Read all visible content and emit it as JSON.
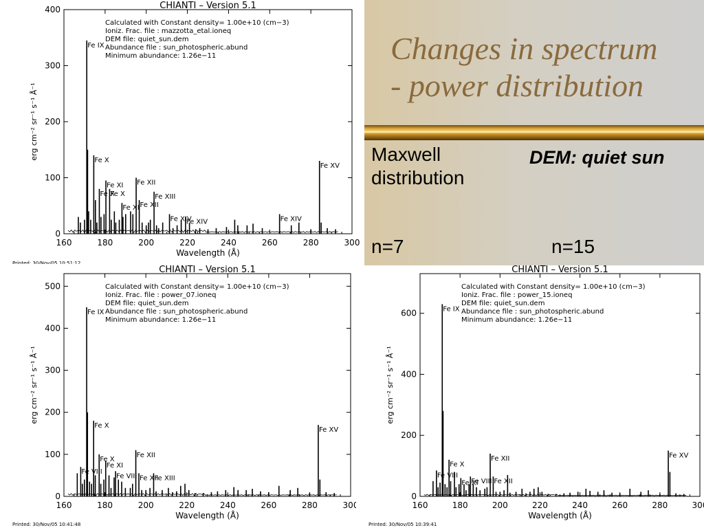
{
  "slide": {
    "title_line1": "Changes in spectrum",
    "title_line2": "- power distribution",
    "maxwell_line1": "Maxwell",
    "maxwell_line2": "distribution",
    "dem_label": "DEM: quiet sun",
    "n7_label": "n=7",
    "n15_label": "n=15"
  },
  "colors": {
    "title": "#8a6a3d",
    "rule_gold": "#d9a23a",
    "panel_bg": "#d4cfc2"
  },
  "chart_data": [
    {
      "type": "line",
      "title": "CHIANTI  –  Version 5.1",
      "xlabel": "Wavelength (Å)",
      "ylabel": "erg cm⁻² sr⁻¹ s⁻¹ Å⁻¹",
      "xlim": [
        160,
        300
      ],
      "ylim": [
        0,
        400
      ],
      "xticks": [
        160,
        180,
        200,
        220,
        240,
        260,
        280,
        300
      ],
      "yticks": [
        0,
        100,
        200,
        300,
        400
      ],
      "printed": "Printed: 30/Nov/05 10:51:12",
      "info": [
        "Calculated with Constant density=   1.00e+10 (cm−3)",
        "Ioniz. Frac. file : mazzotta_etal.ioneq",
        "DEM file: quiet_sun.dem",
        "Abundance file : sun_photospheric.abund",
        "Minimum abundance: 1.26e−11"
      ],
      "lines": [
        {
          "x": 167,
          "y": 30
        },
        {
          "x": 168,
          "y": 20
        },
        {
          "x": 170,
          "y": 25
        },
        {
          "x": 171.1,
          "y": 345,
          "label": "Fe IX"
        },
        {
          "x": 171.5,
          "y": 150
        },
        {
          "x": 172,
          "y": 40
        },
        {
          "x": 173,
          "y": 25
        },
        {
          "x": 174.5,
          "y": 140,
          "label": "Fe X"
        },
        {
          "x": 175.3,
          "y": 60
        },
        {
          "x": 176,
          "y": 20
        },
        {
          "x": 177.2,
          "y": 80,
          "label": "Fe X"
        },
        {
          "x": 178,
          "y": 30
        },
        {
          "x": 179.5,
          "y": 35
        },
        {
          "x": 180.4,
          "y": 95,
          "label": "Fe XI"
        },
        {
          "x": 182.2,
          "y": 80,
          "label": "Fe X"
        },
        {
          "x": 183,
          "y": 25
        },
        {
          "x": 184.5,
          "y": 40
        },
        {
          "x": 185.2,
          "y": 20
        },
        {
          "x": 186.9,
          "y": 25
        },
        {
          "x": 188.2,
          "y": 55,
          "label": "Fe XI"
        },
        {
          "x": 188.7,
          "y": 30
        },
        {
          "x": 190,
          "y": 35
        },
        {
          "x": 192.4,
          "y": 40
        },
        {
          "x": 193.5,
          "y": 35
        },
        {
          "x": 195.1,
          "y": 100,
          "label": "Fe XII"
        },
        {
          "x": 196.6,
          "y": 60,
          "label": "Fe XII"
        },
        {
          "x": 198,
          "y": 20
        },
        {
          "x": 200,
          "y": 15
        },
        {
          "x": 201.1,
          "y": 20
        },
        {
          "x": 202,
          "y": 25
        },
        {
          "x": 203.8,
          "y": 75,
          "label": "Fe XIII"
        },
        {
          "x": 205,
          "y": 15
        },
        {
          "x": 206,
          "y": 10
        },
        {
          "x": 208,
          "y": 20
        },
        {
          "x": 211.3,
          "y": 35,
          "label": "Fe XIV"
        },
        {
          "x": 213,
          "y": 10
        },
        {
          "x": 215,
          "y": 15
        },
        {
          "x": 217,
          "y": 25
        },
        {
          "x": 219.1,
          "y": 30,
          "label": "Fe XIV"
        },
        {
          "x": 221,
          "y": 20
        },
        {
          "x": 224,
          "y": 8
        },
        {
          "x": 226,
          "y": 10
        },
        {
          "x": 230,
          "y": 8
        },
        {
          "x": 234,
          "y": 10
        },
        {
          "x": 239,
          "y": 12
        },
        {
          "x": 243.0,
          "y": 25
        },
        {
          "x": 244.5,
          "y": 15
        },
        {
          "x": 249,
          "y": 15
        },
        {
          "x": 251.9,
          "y": 18
        },
        {
          "x": 256.4,
          "y": 10
        },
        {
          "x": 264.8,
          "y": 35,
          "label": "Fe XIV"
        },
        {
          "x": 270.5,
          "y": 15
        },
        {
          "x": 274.2,
          "y": 20
        },
        {
          "x": 280,
          "y": 8
        },
        {
          "x": 284.2,
          "y": 130,
          "label": "Fe XV"
        },
        {
          "x": 285,
          "y": 20
        },
        {
          "x": 288,
          "y": 10
        },
        {
          "x": 292,
          "y": 8
        }
      ]
    },
    {
      "type": "line",
      "title": "CHIANTI  –  Version 5.1",
      "xlabel": "Wavelength (Å)",
      "ylabel": "erg cm⁻² sr⁻¹ s⁻¹ Å⁻¹",
      "xlim": [
        160,
        300
      ],
      "ylim": [
        0,
        530
      ],
      "xticks": [
        160,
        180,
        200,
        220,
        240,
        260,
        280,
        300
      ],
      "yticks": [
        0,
        100,
        200,
        300,
        400,
        500
      ],
      "printed": "Printed: 30/Nov/05 10:41:48",
      "info": [
        "Calculated with Constant density=   1.00e+10 (cm−3)",
        "Ioniz. Frac. file : power_07.ioneq",
        "DEM file: quiet_sun.dem",
        "Abundance file : sun_photospheric.abund",
        "Minimum abundance: 1.26e−11"
      ],
      "lines": [
        {
          "x": 166.5,
          "y": 55
        },
        {
          "x": 168.2,
          "y": 70,
          "label": "Fe VIII"
        },
        {
          "x": 169,
          "y": 30
        },
        {
          "x": 170,
          "y": 40
        },
        {
          "x": 171.1,
          "y": 450,
          "label": "Fe IX"
        },
        {
          "x": 171.5,
          "y": 200
        },
        {
          "x": 172.5,
          "y": 35
        },
        {
          "x": 173.5,
          "y": 30
        },
        {
          "x": 174.5,
          "y": 180,
          "label": "Fe X"
        },
        {
          "x": 175.3,
          "y": 50
        },
        {
          "x": 177.2,
          "y": 100,
          "label": "Fe X"
        },
        {
          "x": 178,
          "y": 30
        },
        {
          "x": 179.5,
          "y": 40
        },
        {
          "x": 180.4,
          "y": 85,
          "label": "Fe XI"
        },
        {
          "x": 182,
          "y": 50
        },
        {
          "x": 183,
          "y": 20
        },
        {
          "x": 184.5,
          "y": 45
        },
        {
          "x": 185.2,
          "y": 60,
          "label": "Fe VIII"
        },
        {
          "x": 186.6,
          "y": 40
        },
        {
          "x": 188.2,
          "y": 35
        },
        {
          "x": 190,
          "y": 20
        },
        {
          "x": 192.4,
          "y": 20
        },
        {
          "x": 193.5,
          "y": 30
        },
        {
          "x": 195.1,
          "y": 110,
          "label": "Fe XII"
        },
        {
          "x": 196.6,
          "y": 55,
          "label": "Fe XII"
        },
        {
          "x": 198,
          "y": 15
        },
        {
          "x": 200,
          "y": 15
        },
        {
          "x": 202,
          "y": 20
        },
        {
          "x": 203.8,
          "y": 55,
          "label": "Fe XIII"
        },
        {
          "x": 205,
          "y": 12
        },
        {
          "x": 208,
          "y": 15
        },
        {
          "x": 211,
          "y": 20
        },
        {
          "x": 213,
          "y": 10
        },
        {
          "x": 215,
          "y": 12
        },
        {
          "x": 217,
          "y": 25
        },
        {
          "x": 219.1,
          "y": 30
        },
        {
          "x": 221,
          "y": 15
        },
        {
          "x": 224,
          "y": 8
        },
        {
          "x": 228,
          "y": 8
        },
        {
          "x": 232,
          "y": 10
        },
        {
          "x": 235,
          "y": 12
        },
        {
          "x": 239,
          "y": 15
        },
        {
          "x": 243,
          "y": 22
        },
        {
          "x": 245,
          "y": 15
        },
        {
          "x": 249,
          "y": 15
        },
        {
          "x": 252,
          "y": 18
        },
        {
          "x": 256,
          "y": 12
        },
        {
          "x": 260,
          "y": 10
        },
        {
          "x": 265,
          "y": 25
        },
        {
          "x": 270.5,
          "y": 15
        },
        {
          "x": 274.2,
          "y": 20
        },
        {
          "x": 280,
          "y": 8
        },
        {
          "x": 284.2,
          "y": 170,
          "label": "Fe XV"
        },
        {
          "x": 285,
          "y": 40
        },
        {
          "x": 288,
          "y": 10
        },
        {
          "x": 292,
          "y": 8
        }
      ]
    },
    {
      "type": "line",
      "title": "CHIANTI  –  Version 5.1",
      "xlabel": "Wavelength (Å)",
      "ylabel": "erg cm⁻² sr⁻¹ s⁻¹ Å⁻¹",
      "xlim": [
        160,
        300
      ],
      "ylim": [
        0,
        730
      ],
      "xticks": [
        160,
        180,
        200,
        220,
        240,
        260,
        280,
        300
      ],
      "yticks": [
        0,
        200,
        400,
        600
      ],
      "printed": "Printed: 30/Nov/05 10:39:41",
      "info": [
        "Calculated with Constant density=   1.00e+10 (cm−3)",
        "Ioniz. Frac. file : power_15.ioneq",
        "DEM file: quiet_sun.dem",
        "Abundance file : sun_photospheric.abund",
        "Minimum abundance: 1.26e−11"
      ],
      "lines": [
        {
          "x": 166.5,
          "y": 50
        },
        {
          "x": 168.2,
          "y": 85,
          "label": "Fe VIII"
        },
        {
          "x": 169,
          "y": 30
        },
        {
          "x": 170,
          "y": 45
        },
        {
          "x": 171.1,
          "y": 630,
          "label": "Fe IX"
        },
        {
          "x": 171.5,
          "y": 280
        },
        {
          "x": 172.5,
          "y": 40
        },
        {
          "x": 173.5,
          "y": 30
        },
        {
          "x": 174.5,
          "y": 120,
          "label": "Fe X"
        },
        {
          "x": 175.3,
          "y": 50
        },
        {
          "x": 177.2,
          "y": 80
        },
        {
          "x": 178,
          "y": 30
        },
        {
          "x": 179.5,
          "y": 40
        },
        {
          "x": 180.4,
          "y": 60,
          "label": "Fe XI"
        },
        {
          "x": 182,
          "y": 40
        },
        {
          "x": 183,
          "y": 20
        },
        {
          "x": 184.5,
          "y": 40
        },
        {
          "x": 185.2,
          "y": 65,
          "label": "Fe VIII"
        },
        {
          "x": 186.6,
          "y": 40
        },
        {
          "x": 188.2,
          "y": 30
        },
        {
          "x": 190,
          "y": 20
        },
        {
          "x": 192.4,
          "y": 25
        },
        {
          "x": 193.5,
          "y": 30
        },
        {
          "x": 195.1,
          "y": 140,
          "label": "Fe XII"
        },
        {
          "x": 196.6,
          "y": 65,
          "label": "Fe XII"
        },
        {
          "x": 198,
          "y": 15
        },
        {
          "x": 200,
          "y": 15
        },
        {
          "x": 202,
          "y": 20
        },
        {
          "x": 203.8,
          "y": 70
        },
        {
          "x": 205,
          "y": 12
        },
        {
          "x": 208,
          "y": 15
        },
        {
          "x": 211,
          "y": 25
        },
        {
          "x": 213,
          "y": 10
        },
        {
          "x": 215,
          "y": 15
        },
        {
          "x": 217,
          "y": 25
        },
        {
          "x": 219.1,
          "y": 30
        },
        {
          "x": 221,
          "y": 15
        },
        {
          "x": 224,
          "y": 8
        },
        {
          "x": 228,
          "y": 8
        },
        {
          "x": 232,
          "y": 10
        },
        {
          "x": 235,
          "y": 12
        },
        {
          "x": 239,
          "y": 15
        },
        {
          "x": 243,
          "y": 25
        },
        {
          "x": 245,
          "y": 18
        },
        {
          "x": 249,
          "y": 15
        },
        {
          "x": 252,
          "y": 20
        },
        {
          "x": 256,
          "y": 12
        },
        {
          "x": 260,
          "y": 10
        },
        {
          "x": 265,
          "y": 25
        },
        {
          "x": 270.5,
          "y": 15
        },
        {
          "x": 274.2,
          "y": 20
        },
        {
          "x": 280,
          "y": 8
        },
        {
          "x": 284.2,
          "y": 150,
          "label": "Fe XV"
        },
        {
          "x": 285,
          "y": 80
        },
        {
          "x": 288,
          "y": 10
        },
        {
          "x": 292,
          "y": 8
        }
      ]
    }
  ]
}
